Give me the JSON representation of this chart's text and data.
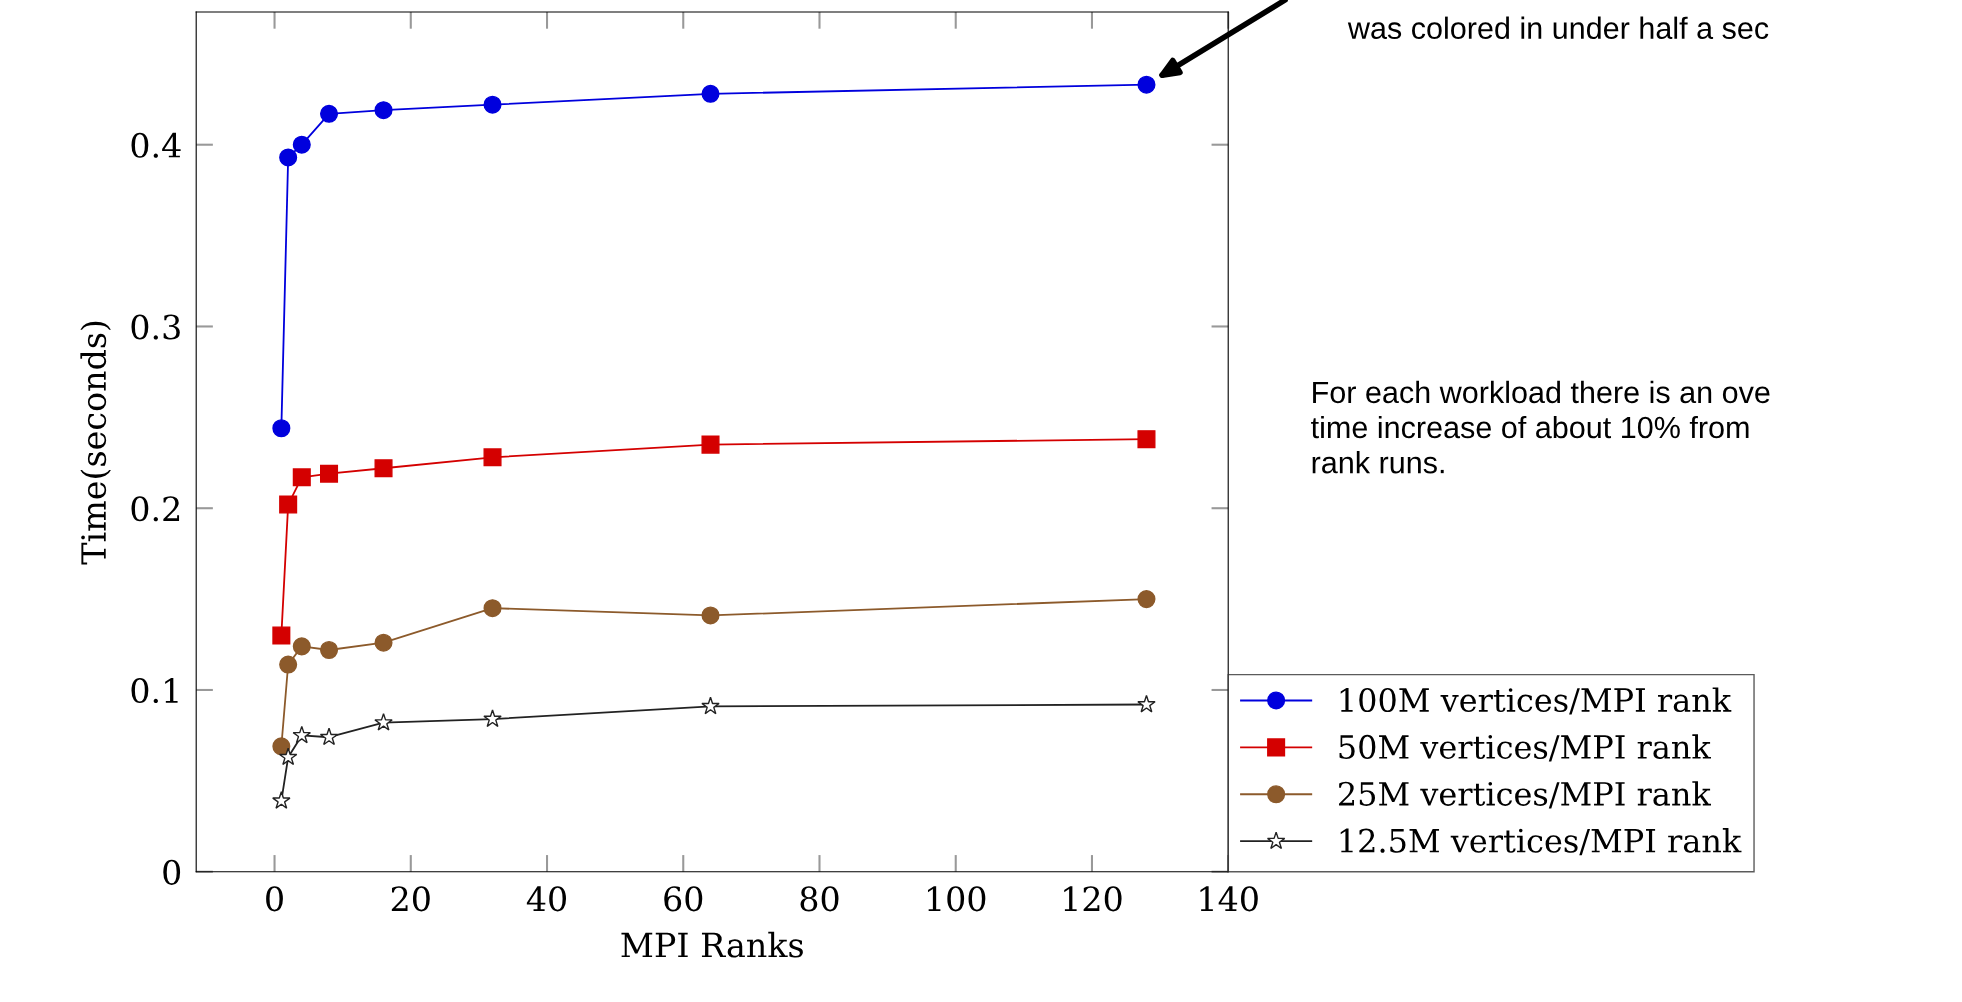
{
  "chart_data": {
    "type": "line",
    "xlabel": "MPI Ranks",
    "ylabel": "Time(seconds)",
    "x": [
      1,
      2,
      4,
      8,
      16,
      32,
      64,
      128
    ],
    "series": [
      {
        "name": "100M vertices/MPI rank",
        "color": "#0000dd",
        "marker": "circle",
        "values": [
          0.244,
          0.393,
          0.4,
          0.417,
          0.419,
          0.422,
          0.428,
          0.433
        ]
      },
      {
        "name": "50M vertices/MPI rank",
        "color": "#d40000",
        "marker": "square",
        "values": [
          0.13,
          0.202,
          0.217,
          0.219,
          0.222,
          0.228,
          0.235,
          0.238
        ]
      },
      {
        "name": "25M vertices/MPI rank",
        "color": "#8c5a2b",
        "marker": "circle",
        "values": [
          0.069,
          0.114,
          0.124,
          0.122,
          0.126,
          0.145,
          0.141,
          0.15
        ]
      },
      {
        "name": "12.5M vertices/MPI rank",
        "color": "#222222",
        "marker": "star",
        "values": [
          0.039,
          0.063,
          0.075,
          0.074,
          0.082,
          0.084,
          0.091,
          0.092
        ]
      }
    ],
    "xlim": [
      -11.5,
      140
    ],
    "xticks": [
      0,
      20,
      40,
      60,
      80,
      100,
      120,
      140
    ],
    "ylim": [
      0,
      0.473
    ],
    "yticks": [
      0,
      0.1,
      0.2,
      0.3,
      0.4
    ],
    "grid": false,
    "legend": "right",
    "line_style": "solid",
    "annotations": [
      "was colored in under half a sec",
      "For each workload there is an ove\ntime increase of about 10% from\nrank runs."
    ]
  }
}
